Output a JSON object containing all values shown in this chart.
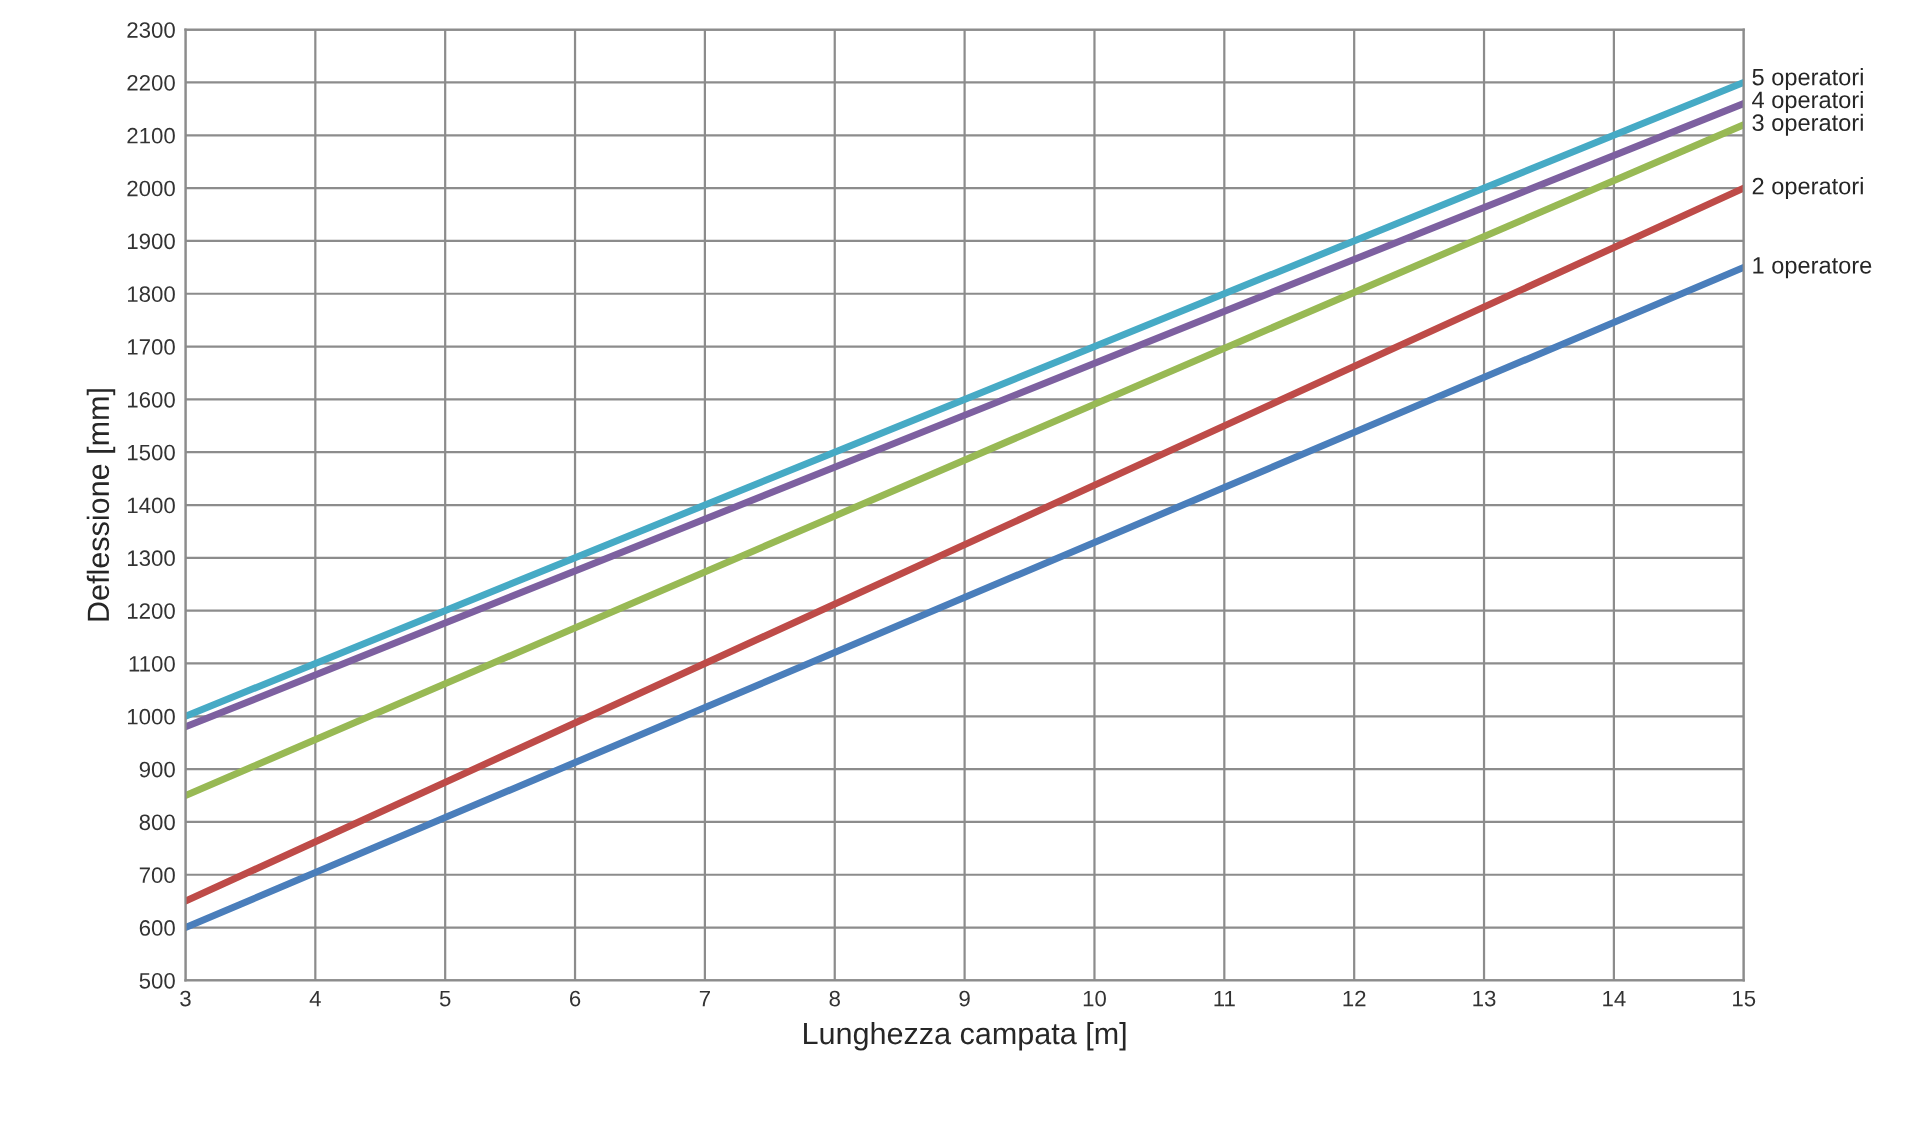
{
  "chart_data": {
    "type": "line",
    "xlabel": "Lunghezza campata [m]",
    "ylabel": "Deflessione [mm]",
    "x": [
      3,
      15
    ],
    "series": [
      {
        "name": "1 operatore",
        "color": "#4a7ebb",
        "values": [
          600,
          1850
        ]
      },
      {
        "name": "2 operatori",
        "color": "#be4b48",
        "values": [
          650,
          2000
        ]
      },
      {
        "name": "3 operatori",
        "color": "#98b954",
        "values": [
          850,
          2120
        ]
      },
      {
        "name": "4 operatori",
        "color": "#7d60a0",
        "values": [
          980,
          2160
        ]
      },
      {
        "name": "5 operatori",
        "color": "#46aac5",
        "values": [
          1000,
          2200
        ]
      }
    ],
    "xlim": [
      3,
      15
    ],
    "xticks": [
      3,
      4,
      5,
      6,
      7,
      8,
      9,
      10,
      11,
      12,
      13,
      14,
      15
    ],
    "ylim": [
      500,
      2300
    ],
    "yticks": [
      500,
      600,
      700,
      800,
      900,
      1000,
      1100,
      1200,
      1300,
      1400,
      1500,
      1600,
      1700,
      1800,
      1900,
      2000,
      2100,
      2200,
      2300
    ],
    "grid": true,
    "marker": "none",
    "line_style": "solid"
  }
}
